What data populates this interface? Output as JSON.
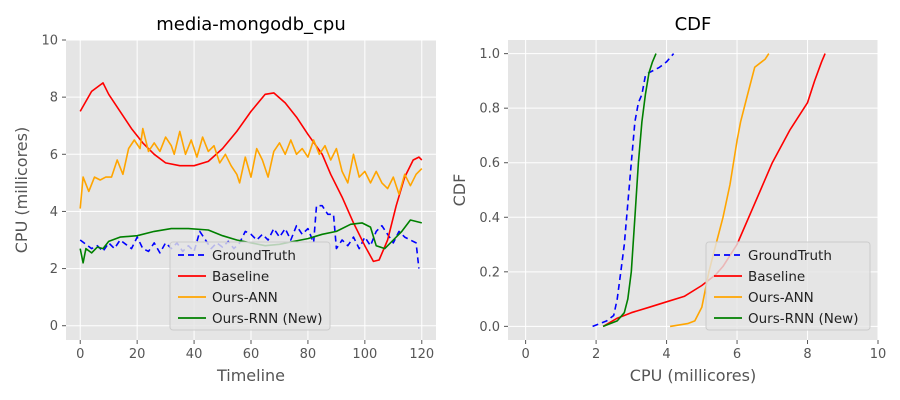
{
  "chart_data": [
    {
      "type": "line",
      "title": "media-mongodb_cpu",
      "xlabel": "Timeline",
      "ylabel": "CPU (millicores)",
      "xlim": [
        -5,
        125
      ],
      "ylim": [
        -0.5,
        10
      ],
      "xticks": [
        "0",
        "20",
        "40",
        "60",
        "80",
        "100",
        "120"
      ],
      "yticks": [
        "0",
        "2",
        "4",
        "6",
        "8",
        "10"
      ],
      "grid": true,
      "legend": "bottom-center",
      "series": [
        {
          "name": "GroundTruth",
          "color": "#0000ff",
          "dash": true,
          "points": [
            [
              0,
              3.0
            ],
            [
              2,
              2.85
            ],
            [
              4,
              2.7
            ],
            [
              6,
              2.8
            ],
            [
              8,
              2.6
            ],
            [
              10,
              2.9
            ],
            [
              12,
              2.7
            ],
            [
              14,
              3.0
            ],
            [
              16,
              2.85
            ],
            [
              18,
              2.7
            ],
            [
              20,
              3.1
            ],
            [
              22,
              2.7
            ],
            [
              24,
              2.6
            ],
            [
              26,
              2.9
            ],
            [
              28,
              2.55
            ],
            [
              30,
              2.9
            ],
            [
              32,
              2.7
            ],
            [
              34,
              2.9
            ],
            [
              36,
              2.6
            ],
            [
              38,
              2.8
            ],
            [
              40,
              2.6
            ],
            [
              42,
              3.3
            ],
            [
              44,
              3.0
            ],
            [
              46,
              2.7
            ],
            [
              48,
              2.9
            ],
            [
              50,
              2.75
            ],
            [
              52,
              2.95
            ],
            [
              54,
              2.7
            ],
            [
              56,
              2.9
            ],
            [
              58,
              3.3
            ],
            [
              60,
              3.2
            ],
            [
              62,
              3.0
            ],
            [
              64,
              3.2
            ],
            [
              66,
              3.0
            ],
            [
              68,
              3.4
            ],
            [
              70,
              3.1
            ],
            [
              72,
              3.4
            ],
            [
              74,
              3.0
            ],
            [
              76,
              3.5
            ],
            [
              78,
              3.2
            ],
            [
              80,
              3.4
            ],
            [
              82,
              2.9
            ],
            [
              83,
              4.2
            ],
            [
              85,
              4.2
            ],
            [
              87,
              3.9
            ],
            [
              89,
              3.9
            ],
            [
              90,
              2.7
            ],
            [
              92,
              3.0
            ],
            [
              94,
              2.8
            ],
            [
              96,
              3.1
            ],
            [
              98,
              2.7
            ],
            [
              100,
              3.1
            ],
            [
              102,
              2.8
            ],
            [
              104,
              3.3
            ],
            [
              106,
              3.5
            ],
            [
              108,
              3.2
            ],
            [
              110,
              2.9
            ],
            [
              112,
              3.3
            ],
            [
              114,
              3.1
            ],
            [
              116,
              3.0
            ],
            [
              118,
              2.9
            ],
            [
              119,
              2.0
            ]
          ]
        },
        {
          "name": "Baseline",
          "color": "#ff0000",
          "dash": false,
          "points": [
            [
              0,
              7.5
            ],
            [
              4,
              8.2
            ],
            [
              8,
              8.5
            ],
            [
              10,
              8.1
            ],
            [
              14,
              7.5
            ],
            [
              18,
              6.9
            ],
            [
              22,
              6.4
            ],
            [
              26,
              6.0
            ],
            [
              30,
              5.7
            ],
            [
              35,
              5.6
            ],
            [
              40,
              5.6
            ],
            [
              45,
              5.75
            ],
            [
              50,
              6.2
            ],
            [
              55,
              6.8
            ],
            [
              60,
              7.5
            ],
            [
              65,
              8.1
            ],
            [
              68,
              8.15
            ],
            [
              72,
              7.8
            ],
            [
              76,
              7.3
            ],
            [
              80,
              6.7
            ],
            [
              85,
              6.0
            ],
            [
              88,
              5.3
            ],
            [
              92,
              4.5
            ],
            [
              96,
              3.6
            ],
            [
              100,
              2.8
            ],
            [
              103,
              2.25
            ],
            [
              105,
              2.3
            ],
            [
              108,
              3.0
            ],
            [
              111,
              4.2
            ],
            [
              114,
              5.2
            ],
            [
              117,
              5.8
            ],
            [
              119,
              5.9
            ],
            [
              120,
              5.8
            ]
          ]
        },
        {
          "name": "Ours-ANN",
          "color": "#ffa500",
          "dash": false,
          "points": [
            [
              0,
              4.1
            ],
            [
              1,
              5.2
            ],
            [
              3,
              4.7
            ],
            [
              5,
              5.2
            ],
            [
              7,
              5.1
            ],
            [
              9,
              5.2
            ],
            [
              11,
              5.2
            ],
            [
              13,
              5.8
            ],
            [
              15,
              5.3
            ],
            [
              17,
              6.2
            ],
            [
              19,
              6.5
            ],
            [
              21,
              6.2
            ],
            [
              22,
              6.9
            ],
            [
              24,
              6.1
            ],
            [
              26,
              6.4
            ],
            [
              28,
              6.1
            ],
            [
              30,
              6.6
            ],
            [
              32,
              6.3
            ],
            [
              33,
              6.0
            ],
            [
              35,
              6.8
            ],
            [
              37,
              6.0
            ],
            [
              39,
              6.5
            ],
            [
              41,
              5.9
            ],
            [
              43,
              6.6
            ],
            [
              45,
              6.1
            ],
            [
              47,
              6.3
            ],
            [
              49,
              5.7
            ],
            [
              51,
              6.0
            ],
            [
              53,
              5.6
            ],
            [
              55,
              5.3
            ],
            [
              56,
              5.0
            ],
            [
              58,
              5.9
            ],
            [
              60,
              5.2
            ],
            [
              62,
              6.2
            ],
            [
              64,
              5.8
            ],
            [
              66,
              5.2
            ],
            [
              68,
              6.1
            ],
            [
              70,
              6.4
            ],
            [
              72,
              6.0
            ],
            [
              74,
              6.5
            ],
            [
              76,
              6.0
            ],
            [
              78,
              6.2
            ],
            [
              80,
              5.9
            ],
            [
              82,
              6.5
            ],
            [
              84,
              6.0
            ],
            [
              86,
              6.3
            ],
            [
              88,
              5.8
            ],
            [
              90,
              6.2
            ],
            [
              92,
              5.4
            ],
            [
              94,
              5.0
            ],
            [
              96,
              6.0
            ],
            [
              98,
              5.2
            ],
            [
              100,
              5.4
            ],
            [
              102,
              5.0
            ],
            [
              104,
              5.4
            ],
            [
              106,
              5.0
            ],
            [
              108,
              4.8
            ],
            [
              110,
              5.2
            ],
            [
              112,
              4.6
            ],
            [
              114,
              5.3
            ],
            [
              116,
              4.9
            ],
            [
              118,
              5.3
            ],
            [
              120,
              5.5
            ]
          ]
        },
        {
          "name": "Ours-RNN (New)",
          "color": "#008000",
          "dash": false,
          "points": [
            [
              0,
              2.7
            ],
            [
              1,
              2.2
            ],
            [
              2,
              2.7
            ],
            [
              4,
              2.55
            ],
            [
              6,
              2.75
            ],
            [
              8,
              2.7
            ],
            [
              10,
              2.95
            ],
            [
              14,
              3.1
            ],
            [
              20,
              3.15
            ],
            [
              26,
              3.3
            ],
            [
              32,
              3.4
            ],
            [
              38,
              3.4
            ],
            [
              45,
              3.35
            ],
            [
              50,
              3.15
            ],
            [
              55,
              3.0
            ],
            [
              60,
              2.9
            ],
            [
              65,
              2.8
            ],
            [
              70,
              2.85
            ],
            [
              75,
              2.95
            ],
            [
              80,
              3.05
            ],
            [
              85,
              3.2
            ],
            [
              90,
              3.3
            ],
            [
              95,
              3.55
            ],
            [
              99,
              3.6
            ],
            [
              102,
              3.45
            ],
            [
              104,
              2.8
            ],
            [
              107,
              2.7
            ],
            [
              110,
              3.0
            ],
            [
              113,
              3.3
            ],
            [
              116,
              3.7
            ],
            [
              120,
              3.6
            ]
          ]
        }
      ]
    },
    {
      "type": "line",
      "title": "CDF",
      "xlabel": "CPU (millicores)",
      "ylabel": "CDF",
      "xlim": [
        -0.5,
        10
      ],
      "ylim": [
        -0.05,
        1.05
      ],
      "xticks": [
        "0",
        "2",
        "4",
        "6",
        "8",
        "10"
      ],
      "yticks": [
        "0.0",
        "0.2",
        "0.4",
        "0.6",
        "0.8",
        "1.0"
      ],
      "grid": true,
      "legend": "bottom-right",
      "series": [
        {
          "name": "GroundTruth",
          "color": "#0000ff",
          "dash": true,
          "points": [
            [
              1.9,
              0.0
            ],
            [
              2.3,
              0.02
            ],
            [
              2.5,
              0.04
            ],
            [
              2.6,
              0.1
            ],
            [
              2.7,
              0.2
            ],
            [
              2.8,
              0.3
            ],
            [
              2.9,
              0.45
            ],
            [
              3.0,
              0.6
            ],
            [
              3.1,
              0.75
            ],
            [
              3.2,
              0.82
            ],
            [
              3.3,
              0.85
            ],
            [
              3.4,
              0.92
            ],
            [
              3.5,
              0.93
            ],
            [
              3.8,
              0.95
            ],
            [
              4.0,
              0.97
            ],
            [
              4.2,
              1.0
            ]
          ]
        },
        {
          "name": "Baseline",
          "color": "#ff0000",
          "dash": false,
          "points": [
            [
              2.2,
              0.0
            ],
            [
              2.6,
              0.03
            ],
            [
              3.0,
              0.05
            ],
            [
              3.5,
              0.07
            ],
            [
              4.0,
              0.09
            ],
            [
              4.5,
              0.11
            ],
            [
              5.0,
              0.15
            ],
            [
              5.4,
              0.19
            ],
            [
              5.6,
              0.22
            ],
            [
              6.0,
              0.3
            ],
            [
              6.5,
              0.45
            ],
            [
              7.0,
              0.6
            ],
            [
              7.5,
              0.72
            ],
            [
              8.0,
              0.82
            ],
            [
              8.2,
              0.9
            ],
            [
              8.4,
              0.97
            ],
            [
              8.5,
              1.0
            ]
          ]
        },
        {
          "name": "Ours-ANN",
          "color": "#ffa500",
          "dash": false,
          "points": [
            [
              4.1,
              0.0
            ],
            [
              4.6,
              0.01
            ],
            [
              4.8,
              0.02
            ],
            [
              5.0,
              0.07
            ],
            [
              5.2,
              0.2
            ],
            [
              5.4,
              0.3
            ],
            [
              5.6,
              0.4
            ],
            [
              5.8,
              0.52
            ],
            [
              6.0,
              0.68
            ],
            [
              6.1,
              0.75
            ],
            [
              6.3,
              0.85
            ],
            [
              6.5,
              0.95
            ],
            [
              6.8,
              0.98
            ],
            [
              6.9,
              1.0
            ]
          ]
        },
        {
          "name": "Ours-RNN (New)",
          "color": "#008000",
          "dash": false,
          "points": [
            [
              2.2,
              0.0
            ],
            [
              2.6,
              0.02
            ],
            [
              2.8,
              0.05
            ],
            [
              2.9,
              0.1
            ],
            [
              3.0,
              0.2
            ],
            [
              3.1,
              0.4
            ],
            [
              3.2,
              0.6
            ],
            [
              3.3,
              0.75
            ],
            [
              3.4,
              0.85
            ],
            [
              3.5,
              0.93
            ],
            [
              3.6,
              0.97
            ],
            [
              3.7,
              1.0
            ]
          ]
        }
      ]
    }
  ]
}
